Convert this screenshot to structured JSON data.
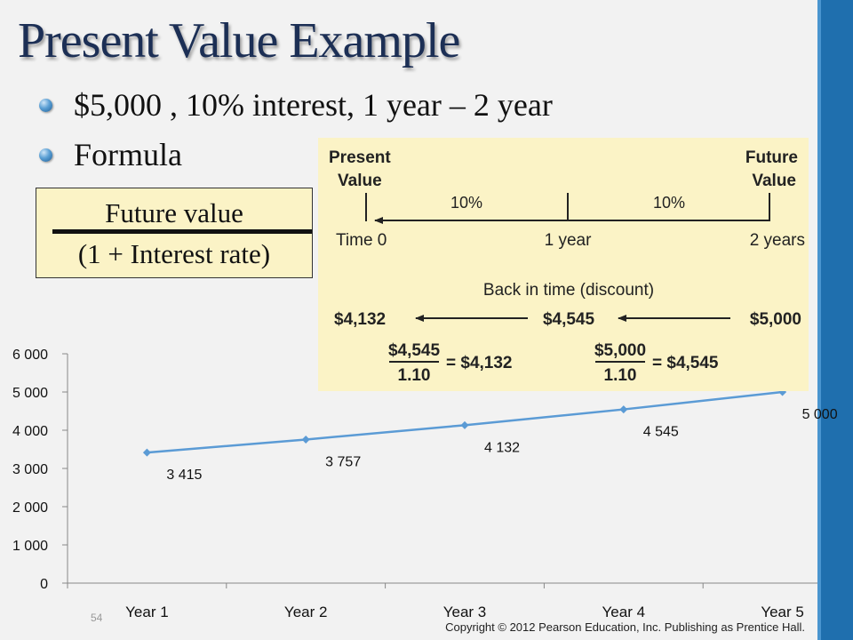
{
  "slide": {
    "title": "Present Value Example",
    "bullets": [
      "$5,000 , 10% interest, 1 year – 2 year",
      "Formula"
    ],
    "formula": {
      "numerator": "Future value",
      "denominator": "(1 + Interest rate)"
    },
    "slide_number": "54",
    "copyright": "Copyright © 2012 Pearson Education, Inc. Publishing as Prentice Hall.",
    "colors": {
      "title": "#1c2f55",
      "sidebar": "#1f6fae",
      "series": "#5b9bd5",
      "panel": "#fbf3c6"
    }
  },
  "timeline": {
    "present_label": [
      "Present",
      "Value"
    ],
    "future_label": [
      "Future",
      "Value"
    ],
    "rates": [
      "10%",
      "10%"
    ],
    "times": [
      "Time 0",
      "1 year",
      "2 years"
    ],
    "caption": "Back in time (discount)",
    "amounts": [
      "$4,132",
      "$4,545",
      "$5,000"
    ],
    "calc1": {
      "num": "$4,545",
      "den": "1.10",
      "result": "= $4,132"
    },
    "calc2": {
      "num": "$5,000",
      "den": "1.10",
      "result": "= $4,545"
    }
  },
  "chart_data": {
    "type": "line",
    "categories": [
      "Year 1",
      "Year 2",
      "Year 3",
      "Year 4",
      "Year 5"
    ],
    "values": [
      3415,
      3757,
      4132,
      4545,
      5000
    ],
    "value_labels": [
      "3 415",
      "3 757",
      "4 132",
      "4 545",
      "5 000"
    ],
    "y_ticks": [
      0,
      1000,
      2000,
      3000,
      4000,
      5000,
      6000
    ],
    "y_tick_labels": [
      "0",
      "1 000",
      "2 000",
      "3 000",
      "4 000",
      "5 000",
      "6 000"
    ],
    "ylim": [
      0,
      6000
    ],
    "grid": false,
    "legend": "none",
    "marker": "diamond"
  }
}
